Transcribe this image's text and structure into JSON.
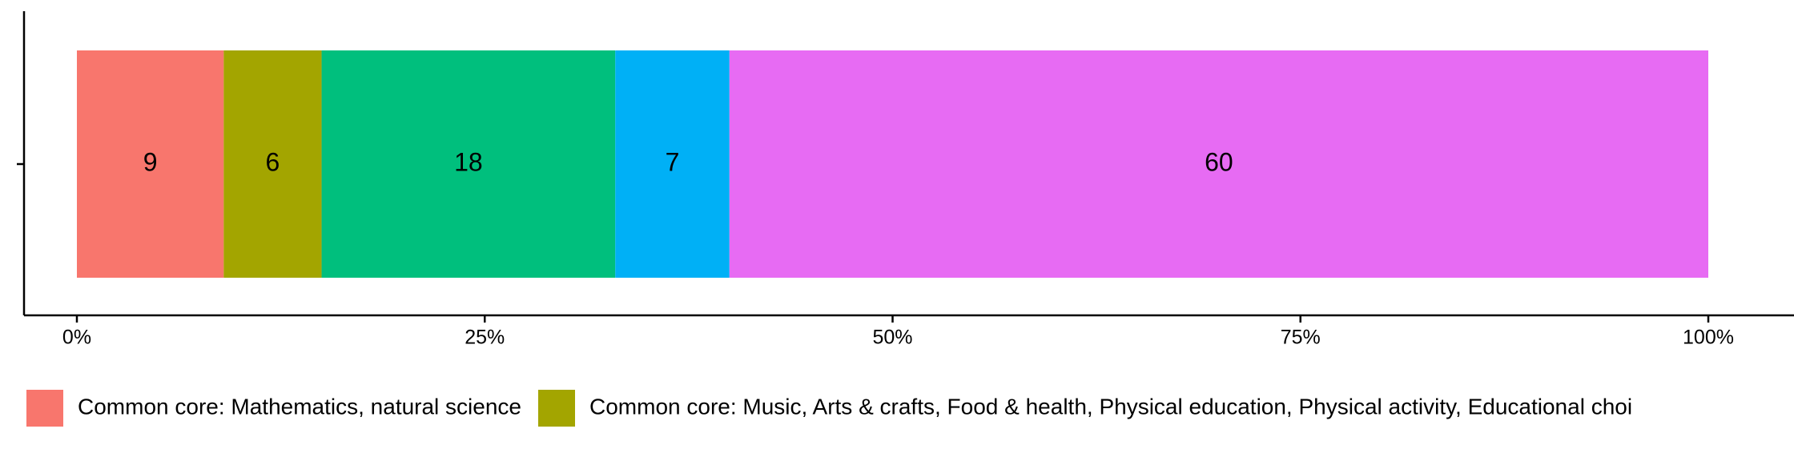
{
  "chart_data": {
    "type": "stacked-bar-horizontal",
    "categories": [
      null
    ],
    "series": [
      {
        "name": "Common core: Mathematics, natural science",
        "color": "#F8766D",
        "values": [
          9
        ]
      },
      {
        "name": "Common core: Music, Arts & crafts, Food & health, Physical education, Physical activity, Educational choi",
        "color": "#A3A500",
        "values": [
          6
        ]
      },
      {
        "color": "#00BF7D",
        "values": [
          18
        ]
      },
      {
        "color": "#00B0F6",
        "values": [
          7
        ]
      },
      {
        "color": "#E76BF3",
        "values": [
          60
        ]
      }
    ],
    "xlim": [
      0,
      100
    ],
    "xticks": [
      {
        "value": 0,
        "label": "0%"
      },
      {
        "value": 25,
        "label": "25%"
      },
      {
        "value": 50,
        "label": "50%"
      },
      {
        "value": 75,
        "label": "75%"
      },
      {
        "value": 100,
        "label": "100%"
      }
    ],
    "legend": "bottom"
  }
}
